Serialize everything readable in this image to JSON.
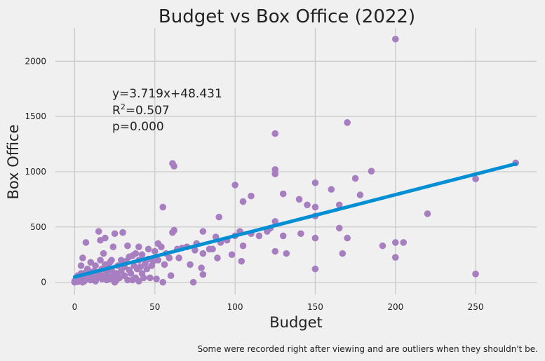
{
  "chart_data": {
    "type": "scatter",
    "title": "Budget vs Box Office (2022)",
    "xlabel": "Budget",
    "ylabel": "Box Office",
    "xlim": [
      -12,
      288
    ],
    "ylim": [
      -110,
      2300
    ],
    "xticks": [
      0,
      50,
      100,
      150,
      200,
      250
    ],
    "yticks": [
      0,
      500,
      1000,
      1500,
      2000
    ],
    "grid": true,
    "colors": {
      "points": "#a77fc1",
      "fit_line": "#008fd5",
      "background": "#f0f0f0",
      "grid": "#cbcbcb"
    },
    "fit": {
      "slope": 3.719,
      "intercept": 48.431,
      "x_range": [
        0,
        275
      ],
      "equation_text": "y=3.719x+48.431",
      "r2_label": "R",
      "r2_sup": "2",
      "r2_value": "=0.507",
      "p_text": "p=0.000"
    },
    "caption": "Some were recorded right after viewing and are outliers when they shouldn't be.",
    "points": [
      [
        0,
        0
      ],
      [
        0,
        10
      ],
      [
        1,
        20
      ],
      [
        1,
        40
      ],
      [
        2,
        5
      ],
      [
        2,
        60
      ],
      [
        3,
        15
      ],
      [
        3,
        30
      ],
      [
        4,
        80
      ],
      [
        4,
        150
      ],
      [
        5,
        0
      ],
      [
        5,
        20
      ],
      [
        5,
        220
      ],
      [
        6,
        10
      ],
      [
        6,
        50
      ],
      [
        7,
        90
      ],
      [
        7,
        360
      ],
      [
        8,
        30
      ],
      [
        8,
        120
      ],
      [
        9,
        70
      ],
      [
        10,
        20
      ],
      [
        10,
        90
      ],
      [
        10,
        180
      ],
      [
        11,
        60
      ],
      [
        12,
        100
      ],
      [
        13,
        10
      ],
      [
        13,
        150
      ],
      [
        14,
        40
      ],
      [
        15,
        80
      ],
      [
        15,
        460
      ],
      [
        16,
        200
      ],
      [
        16,
        380
      ],
      [
        17,
        120
      ],
      [
        17,
        30
      ],
      [
        18,
        260
      ],
      [
        18,
        60
      ],
      [
        19,
        400
      ],
      [
        19,
        160
      ],
      [
        20,
        20
      ],
      [
        20,
        90
      ],
      [
        21,
        140
      ],
      [
        21,
        50
      ],
      [
        22,
        180
      ],
      [
        22,
        30
      ],
      [
        23,
        110
      ],
      [
        23,
        200
      ],
      [
        24,
        60
      ],
      [
        24,
        320
      ],
      [
        25,
        440
      ],
      [
        25,
        0
      ],
      [
        26,
        80
      ],
      [
        26,
        20
      ],
      [
        27,
        150
      ],
      [
        28,
        40
      ],
      [
        29,
        100
      ],
      [
        29,
        200
      ],
      [
        30,
        450
      ],
      [
        31,
        140
      ],
      [
        31,
        60
      ],
      [
        32,
        190
      ],
      [
        33,
        20
      ],
      [
        33,
        330
      ],
      [
        34,
        230
      ],
      [
        34,
        110
      ],
      [
        35,
        80
      ],
      [
        36,
        240
      ],
      [
        36,
        20
      ],
      [
        37,
        150
      ],
      [
        38,
        260
      ],
      [
        38,
        40
      ],
      [
        39,
        120
      ],
      [
        40,
        320
      ],
      [
        40,
        200
      ],
      [
        40,
        10
      ],
      [
        41,
        140
      ],
      [
        42,
        80
      ],
      [
        42,
        250
      ],
      [
        43,
        40
      ],
      [
        44,
        170
      ],
      [
        45,
        120
      ],
      [
        46,
        300
      ],
      [
        46,
        210
      ],
      [
        47,
        40
      ],
      [
        48,
        150
      ],
      [
        49,
        190
      ],
      [
        50,
        280
      ],
      [
        51,
        30
      ],
      [
        52,
        350
      ],
      [
        52,
        200
      ],
      [
        54,
        320
      ],
      [
        55,
        0
      ],
      [
        55,
        680
      ],
      [
        56,
        160
      ],
      [
        57,
        260
      ],
      [
        59,
        220
      ],
      [
        60,
        60
      ],
      [
        61,
        450
      ],
      [
        61,
        1075
      ],
      [
        62,
        1050
      ],
      [
        62,
        470
      ],
      [
        64,
        300
      ],
      [
        65,
        220
      ],
      [
        67,
        310
      ],
      [
        70,
        320
      ],
      [
        72,
        160
      ],
      [
        74,
        0
      ],
      [
        75,
        290
      ],
      [
        76,
        350
      ],
      [
        79,
        130
      ],
      [
        80,
        460
      ],
      [
        80,
        70
      ],
      [
        80,
        260
      ],
      [
        84,
        300
      ],
      [
        86,
        300
      ],
      [
        88,
        410
      ],
      [
        89,
        220
      ],
      [
        90,
        590
      ],
      [
        91,
        360
      ],
      [
        95,
        380
      ],
      [
        98,
        250
      ],
      [
        100,
        880
      ],
      [
        100,
        420
      ],
      [
        103,
        460
      ],
      [
        104,
        190
      ],
      [
        105,
        730
      ],
      [
        105,
        330
      ],
      [
        110,
        780
      ],
      [
        110,
        440
      ],
      [
        115,
        420
      ],
      [
        120,
        460
      ],
      [
        122,
        490
      ],
      [
        125,
        1345
      ],
      [
        125,
        1020
      ],
      [
        125,
        980
      ],
      [
        125,
        550
      ],
      [
        125,
        280
      ],
      [
        130,
        800
      ],
      [
        130,
        420
      ],
      [
        132,
        260
      ],
      [
        140,
        750
      ],
      [
        141,
        440
      ],
      [
        145,
        700
      ],
      [
        150,
        900
      ],
      [
        150,
        680
      ],
      [
        150,
        600
      ],
      [
        150,
        400
      ],
      [
        150,
        120
      ],
      [
        160,
        840
      ],
      [
        165,
        700
      ],
      [
        165,
        490
      ],
      [
        167,
        260
      ],
      [
        170,
        1445
      ],
      [
        170,
        400
      ],
      [
        175,
        940
      ],
      [
        178,
        790
      ],
      [
        185,
        1005
      ],
      [
        192,
        330
      ],
      [
        200,
        2200
      ],
      [
        200,
        360
      ],
      [
        200,
        225
      ],
      [
        205,
        360
      ],
      [
        220,
        620
      ],
      [
        250,
        935
      ],
      [
        250,
        75
      ],
      [
        275,
        1080
      ]
    ]
  }
}
